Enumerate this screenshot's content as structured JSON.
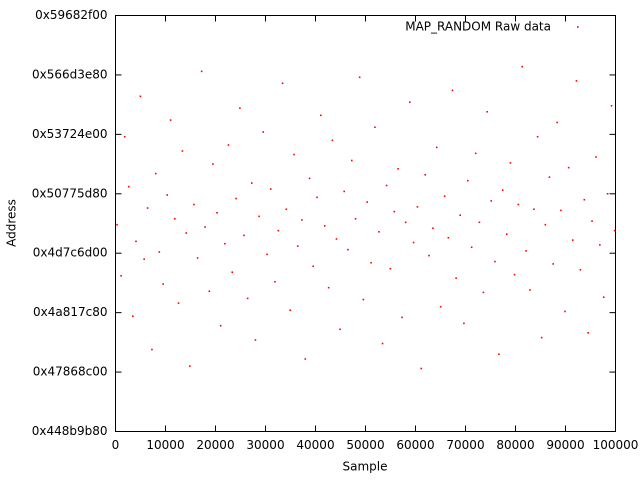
{
  "chart_data": {
    "type": "scatter",
    "x_label": "Sample",
    "y_label": "Address",
    "xlim": [
      0,
      100000
    ],
    "xticks": [
      0,
      10000,
      20000,
      30000,
      40000,
      50000,
      60000,
      70000,
      80000,
      90000,
      100000
    ],
    "ylim": [
      1150000000,
      1500000000
    ],
    "yticks": [
      {
        "value": 1150000000,
        "label": "0x448b9b80"
      },
      {
        "value": 1200000000,
        "label": "0x47868c00"
      },
      {
        "value": 1250000000,
        "label": "0x4a817c80"
      },
      {
        "value": 1300000000,
        "label": "0x4d7c6d00"
      },
      {
        "value": 1350000000,
        "label": "0x50775d80"
      },
      {
        "value": 1400000000,
        "label": "0x53724e00"
      },
      {
        "value": 1450000000,
        "label": "0x566d3e80"
      },
      {
        "value": 1500000000,
        "label": "0x59682f00"
      }
    ],
    "legend": "top-right",
    "series": [
      {
        "name": "MAP_RANDOM Raw data",
        "color": "#ff0000",
        "x": [
          310,
          1120,
          1840,
          2650,
          3470,
          4100,
          4980,
          5730,
          6420,
          7290,
          8050,
          8760,
          9530,
          10340,
          11020,
          11870,
          12610,
          13380,
          14150,
          14870,
          15690,
          16420,
          17230,
          17910,
          18760,
          19480,
          20310,
          21040,
          21870,
          22590,
          23350,
          24120,
          24880,
          25710,
          26430,
          27260,
          27980,
          28720,
          29540,
          30310,
          31050,
          31890,
          32570,
          33420,
          34160,
          34930,
          35710,
          36440,
          37280,
          37960,
          38810,
          39530,
          40290,
          41070,
          41850,
          42630,
          43380,
          44190,
          44920,
          45740,
          46480,
          47260,
          48010,
          48830,
          49570,
          50340,
          51120,
          51880,
          52690,
          53410,
          54230,
          54970,
          55760,
          56520,
          57310,
          58040,
          58860,
          59620,
          60390,
          61150,
          61940,
          62700,
          63480,
          64250,
          65020,
          65830,
          66570,
          67390,
          68120,
          68940,
          69680,
          70470,
          71230,
          72040,
          72780,
          73590,
          74330,
          75140,
          75890,
          76680,
          77440,
          78250,
          78990,
          79810,
          80560,
          81340,
          82120,
          82890,
          83690,
          84420,
          85240,
          85970,
          86790,
          87540,
          88330,
          89080,
          89890,
          90630,
          91450,
          92190,
          92980,
          93760,
          94530,
          95310,
          96090,
          96870,
          97640,
          98420,
          99210,
          99830
        ],
        "values": [
          1324000000,
          1281000000,
          1398000000,
          1356000000,
          1247000000,
          1310000000,
          1432000000,
          1295000000,
          1338000000,
          1219000000,
          1367000000,
          1301000000,
          1274000000,
          1349000000,
          1412000000,
          1329000000,
          1258000000,
          1386000000,
          1317000000,
          1205000000,
          1341000000,
          1296000000,
          1453000000,
          1322000000,
          1268000000,
          1375000000,
          1334000000,
          1239000000,
          1308000000,
          1391000000,
          1284000000,
          1346000000,
          1422000000,
          1315000000,
          1262000000,
          1359000000,
          1227000000,
          1331000000,
          1402000000,
          1299000000,
          1354000000,
          1276000000,
          1319000000,
          1443000000,
          1337000000,
          1252000000,
          1383000000,
          1306000000,
          1328000000,
          1211000000,
          1363000000,
          1289000000,
          1347000000,
          1416000000,
          1323000000,
          1271000000,
          1395000000,
          1312000000,
          1236000000,
          1352000000,
          1303000000,
          1378000000,
          1329000000,
          1448000000,
          1261000000,
          1343000000,
          1292000000,
          1406000000,
          1318000000,
          1224000000,
          1357000000,
          1287000000,
          1335000000,
          1371000000,
          1246000000,
          1326000000,
          1427000000,
          1309000000,
          1339000000,
          1203000000,
          1366000000,
          1298000000,
          1321000000,
          1389000000,
          1255000000,
          1348000000,
          1313000000,
          1437000000,
          1279000000,
          1332000000,
          1241000000,
          1361000000,
          1305000000,
          1384000000,
          1326000000,
          1267000000,
          1419000000,
          1344000000,
          1293000000,
          1215000000,
          1353000000,
          1316000000,
          1376000000,
          1282000000,
          1341000000,
          1457000000,
          1302000000,
          1269000000,
          1337000000,
          1398000000,
          1229000000,
          1324000000,
          1364000000,
          1291000000,
          1410000000,
          1336000000,
          1251000000,
          1372000000,
          1311000000,
          1445000000,
          1286000000,
          1345000000,
          1233000000,
          1327000000,
          1381000000,
          1307000000,
          1263000000,
          1350000000,
          1424000000,
          1319000000
        ]
      }
    ]
  }
}
